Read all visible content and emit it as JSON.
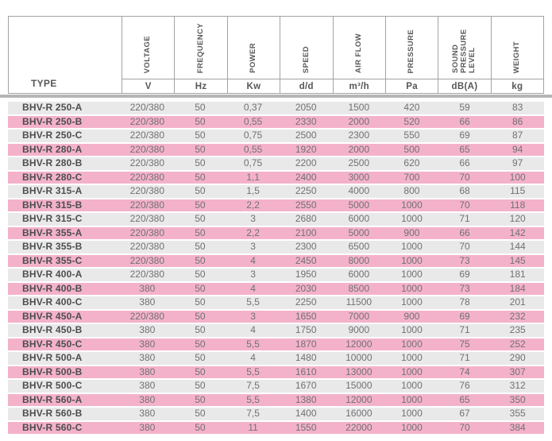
{
  "header": {
    "type_label": "TYPE",
    "columns": [
      {
        "name": "VOLTAGE",
        "unit": "V"
      },
      {
        "name": "FREQUENCY",
        "unit": "Hz"
      },
      {
        "name": "POWER",
        "unit": "Kw"
      },
      {
        "name": "SPEED",
        "unit": "d/d"
      },
      {
        "name": "AIR FLOW",
        "unit": "m³/h"
      },
      {
        "name": "PRESSURE",
        "unit": "Pa"
      },
      {
        "name": "SOUND PRESSURE LEVEL",
        "unit": "dB(A)"
      },
      {
        "name": "WEIGHT",
        "unit": "kg"
      }
    ]
  },
  "rows": [
    {
      "type": "BHV-R 250-A",
      "values": [
        "220/380",
        "50",
        "0,37",
        "2050",
        "1500",
        "420",
        "59",
        "83"
      ]
    },
    {
      "type": "BHV-R 250-B",
      "values": [
        "220/380",
        "50",
        "0,55",
        "2330",
        "2000",
        "520",
        "66",
        "86"
      ]
    },
    {
      "type": "BHV-R 250-C",
      "values": [
        "220/380",
        "50",
        "0,75",
        "2500",
        "2300",
        "550",
        "69",
        "87"
      ]
    },
    {
      "type": "BHV-R 280-A",
      "values": [
        "220/380",
        "50",
        "0,55",
        "1920",
        "2000",
        "500",
        "65",
        "94"
      ]
    },
    {
      "type": "BHV-R 280-B",
      "values": [
        "220/380",
        "50",
        "0,75",
        "2200",
        "2500",
        "620",
        "66",
        "97"
      ]
    },
    {
      "type": "BHV-R 280-C",
      "values": [
        "220/380",
        "50",
        "1,1",
        "2400",
        "3000",
        "700",
        "70",
        "100"
      ]
    },
    {
      "type": "BHV-R 315-A",
      "values": [
        "220/380",
        "50",
        "1,5",
        "2250",
        "4000",
        "800",
        "68",
        "115"
      ]
    },
    {
      "type": "BHV-R 315-B",
      "values": [
        "220/380",
        "50",
        "2,2",
        "2550",
        "5000",
        "1000",
        "70",
        "118"
      ]
    },
    {
      "type": "BHV-R 315-C",
      "values": [
        "220/380",
        "50",
        "3",
        "2680",
        "6000",
        "1000",
        "71",
        "120"
      ]
    },
    {
      "type": "BHV-R 355-A",
      "values": [
        "220/380",
        "50",
        "2,2",
        "2100",
        "5000",
        "900",
        "66",
        "142"
      ]
    },
    {
      "type": "BHV-R 355-B",
      "values": [
        "220/380",
        "50",
        "3",
        "2300",
        "6500",
        "1000",
        "70",
        "144"
      ]
    },
    {
      "type": "BHV-R 355-C",
      "values": [
        "220/380",
        "50",
        "4",
        "2450",
        "8000",
        "1000",
        "73",
        "145"
      ]
    },
    {
      "type": "BHV-R 400-A",
      "values": [
        "220/380",
        "50",
        "3",
        "1950",
        "6000",
        "1000",
        "69",
        "181"
      ]
    },
    {
      "type": "BHV-R 400-B",
      "values": [
        "380",
        "50",
        "4",
        "2030",
        "8500",
        "1000",
        "73",
        "184"
      ]
    },
    {
      "type": "BHV-R 400-C",
      "values": [
        "380",
        "50",
        "5,5",
        "2250",
        "11500",
        "1000",
        "78",
        "201"
      ]
    },
    {
      "type": "BHV-R 450-A",
      "values": [
        "220/380",
        "50",
        "3",
        "1650",
        "7000",
        "900",
        "69",
        "232"
      ]
    },
    {
      "type": "BHV-R 450-B",
      "values": [
        "380",
        "50",
        "4",
        "1750",
        "9000",
        "1000",
        "71",
        "235"
      ]
    },
    {
      "type": "BHV-R 450-C",
      "values": [
        "380",
        "50",
        "5,5",
        "1870",
        "12000",
        "1000",
        "75",
        "252"
      ]
    },
    {
      "type": "BHV-R 500-A",
      "values": [
        "380",
        "50",
        "4",
        "1480",
        "10000",
        "1000",
        "71",
        "290"
      ]
    },
    {
      "type": "BHV-R 500-B",
      "values": [
        "380",
        "50",
        "5,5",
        "1610",
        "13000",
        "1000",
        "74",
        "307"
      ]
    },
    {
      "type": "BHV-R 500-C",
      "values": [
        "380",
        "50",
        "7,5",
        "1670",
        "15000",
        "1000",
        "76",
        "312"
      ]
    },
    {
      "type": "BHV-R 560-A",
      "values": [
        "380",
        "50",
        "5,5",
        "1380",
        "12000",
        "1000",
        "65",
        "350"
      ]
    },
    {
      "type": "BHV-R 560-B",
      "values": [
        "380",
        "50",
        "7,5",
        "1400",
        "16000",
        "1000",
        "67",
        "355"
      ]
    },
    {
      "type": "BHV-R 560-C",
      "values": [
        "380",
        "50",
        "11",
        "1550",
        "22000",
        "1000",
        "70",
        "384"
      ]
    }
  ],
  "colors": {
    "row_gray": "#e9e9e9",
    "row_pink": "#f4b2ca",
    "divider": "#b6b6b6",
    "border": "#a3a3a3"
  }
}
